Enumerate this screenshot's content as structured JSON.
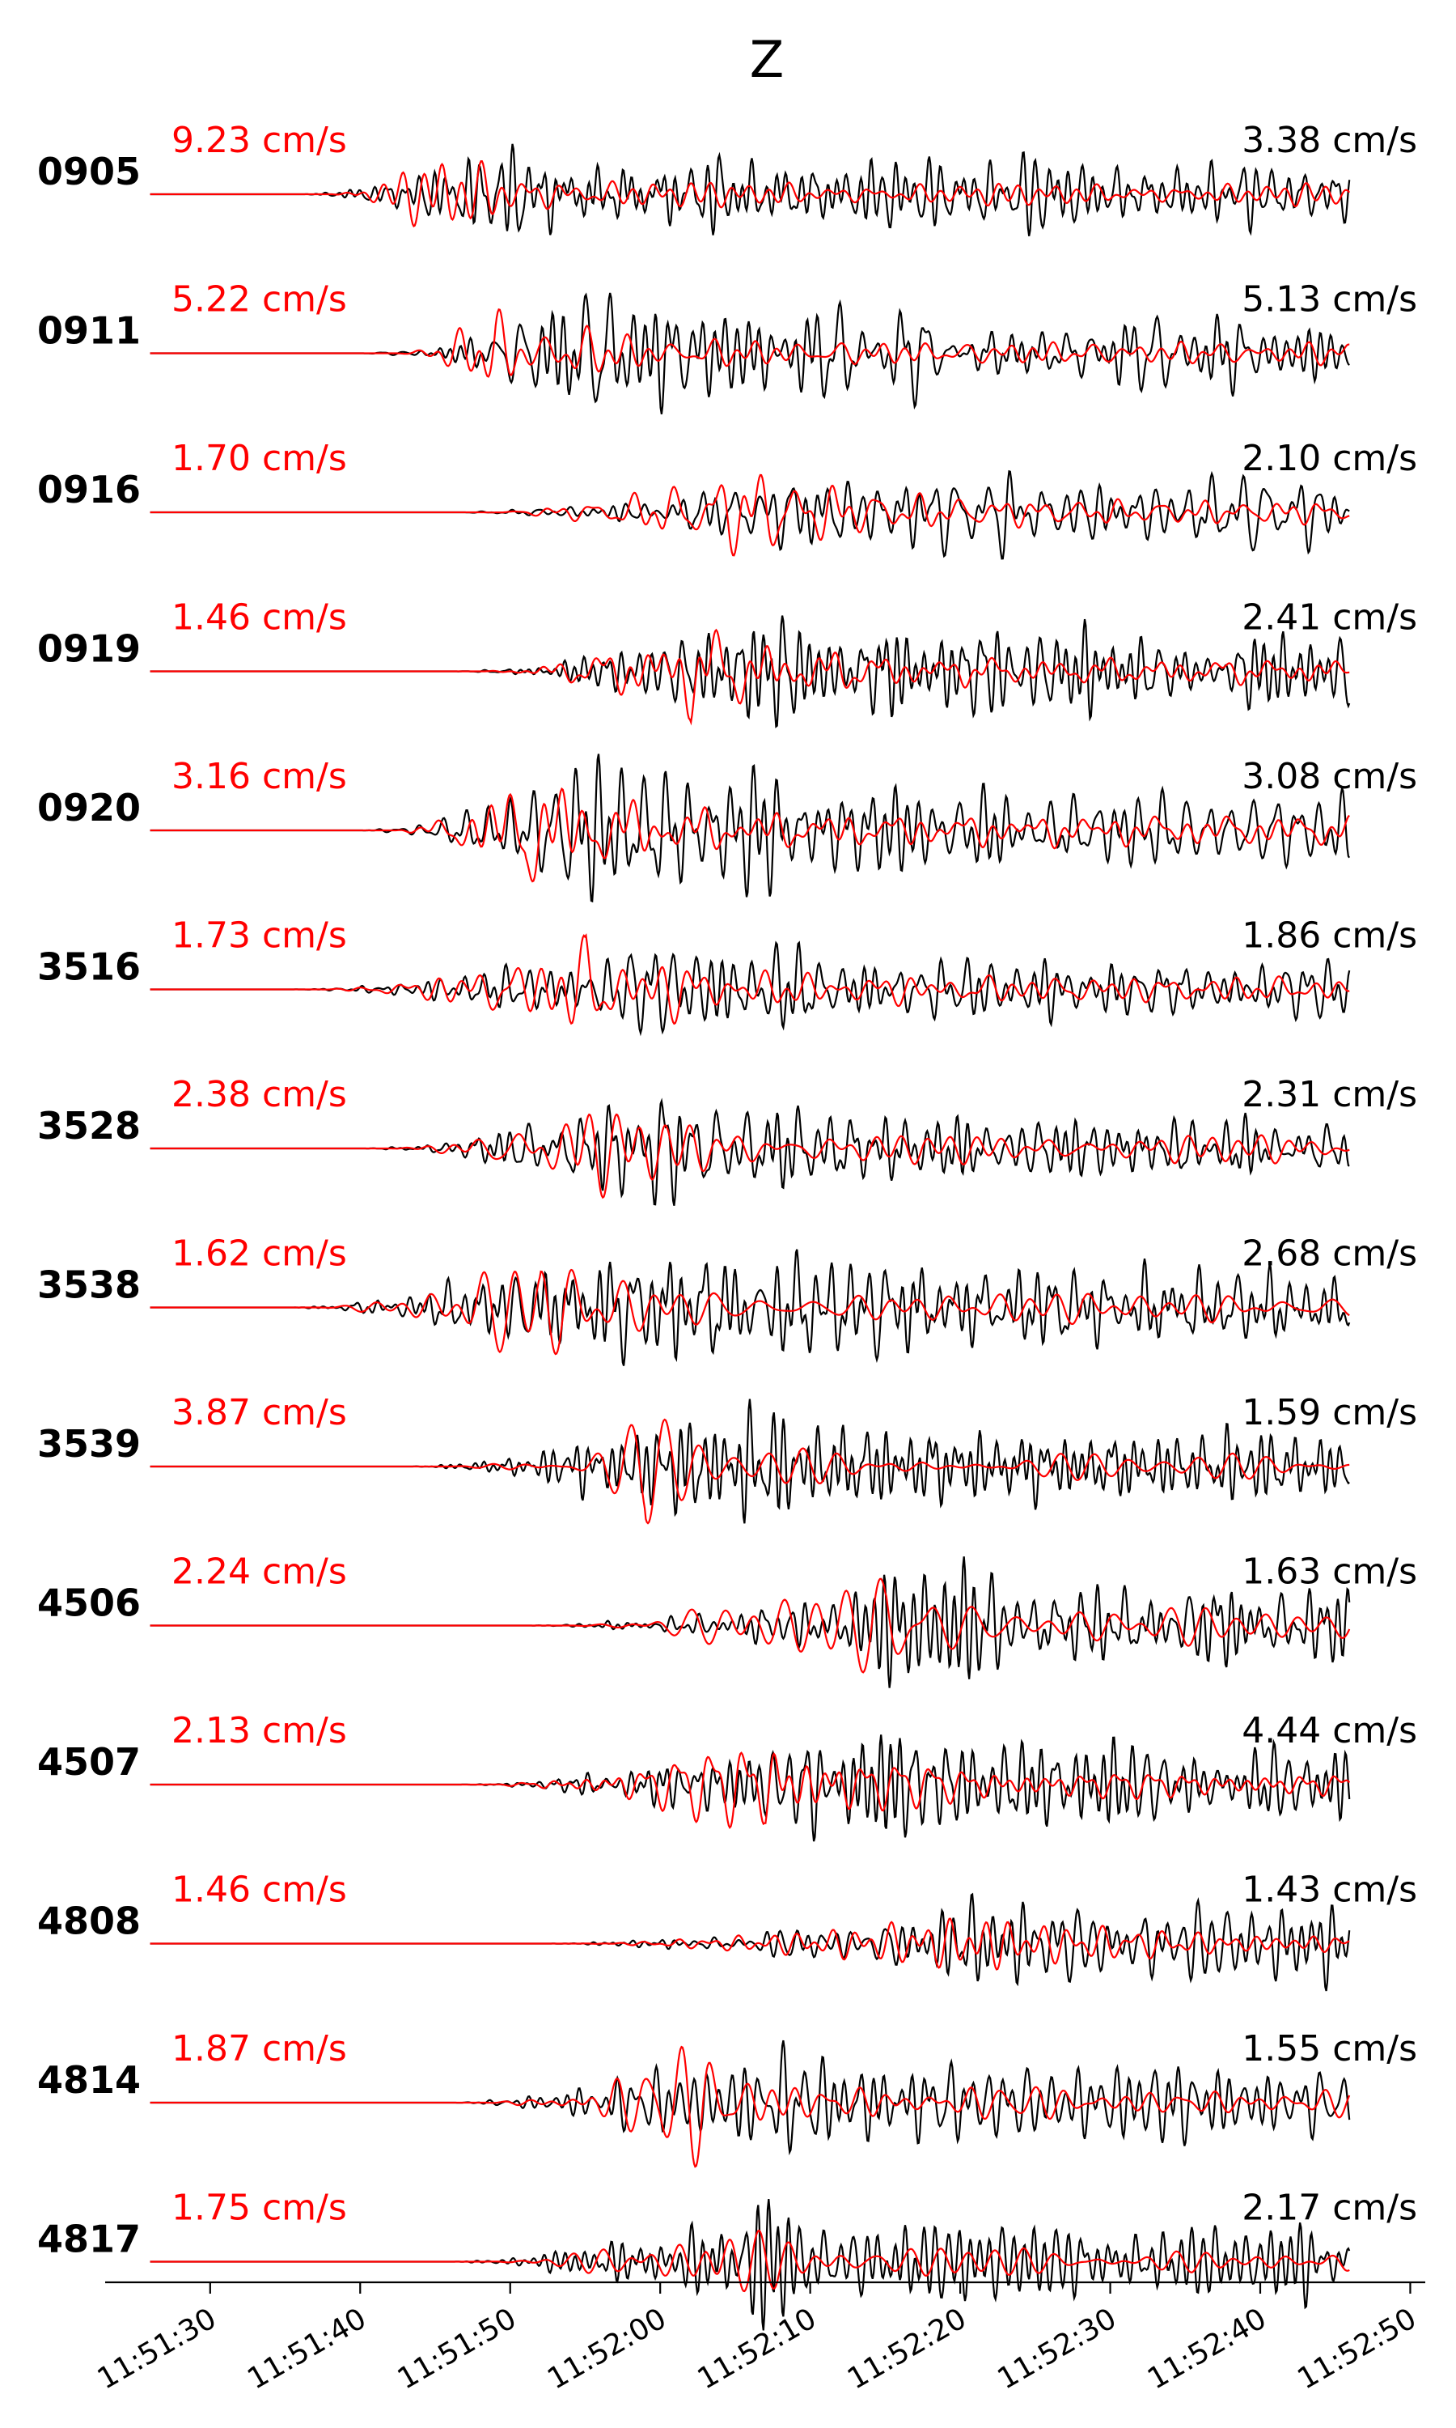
{
  "chart_data": {
    "type": "line",
    "title": "Z",
    "xlabel": "",
    "ylabel": "",
    "xlim": [
      "11:51:23",
      "11:52:51"
    ],
    "x_ticks": [
      "11:51:30",
      "11:51:40",
      "11:51:50",
      "11:52:00",
      "11:52:10",
      "11:52:20",
      "11:52:30",
      "11:52:40",
      "11:52:50"
    ],
    "grid": false,
    "legend": "none",
    "trace_start": "11:51:26",
    "trace_end": "11:52:46",
    "series_colors": {
      "red": "#ff0000",
      "black": "#000000"
    },
    "traces": [
      {
        "station": "0905",
        "red_peak": "9.23 cm/s",
        "black_peak": "3.38 cm/s",
        "onset": "11:51:36",
        "peak_time": "11:51:45"
      },
      {
        "station": "0911",
        "red_peak": "5.22 cm/s",
        "black_peak": "5.13 cm/s",
        "onset": "11:51:40",
        "peak_time": "11:51:49"
      },
      {
        "station": "0916",
        "red_peak": "1.70 cm/s",
        "black_peak": "2.10 cm/s",
        "onset": "11:51:46",
        "peak_time": "11:52:06"
      },
      {
        "station": "0919",
        "red_peak": "1.46 cm/s",
        "black_peak": "2.41 cm/s",
        "onset": "11:51:46",
        "peak_time": "11:52:02"
      },
      {
        "station": "0920",
        "red_peak": "3.16 cm/s",
        "black_peak": "3.08 cm/s",
        "onset": "11:51:40",
        "peak_time": "11:51:51"
      },
      {
        "station": "3516",
        "red_peak": "1.73 cm/s",
        "black_peak": "1.86 cm/s",
        "onset": "11:51:35",
        "peak_time": "11:51:55"
      },
      {
        "station": "3528",
        "red_peak": "2.38 cm/s",
        "black_peak": "2.31 cm/s",
        "onset": "11:51:40",
        "peak_time": "11:51:54"
      },
      {
        "station": "3538",
        "red_peak": "1.62 cm/s",
        "black_peak": "2.68 cm/s",
        "onset": "11:51:35",
        "peak_time": "11:51:52"
      },
      {
        "station": "3539",
        "red_peak": "3.87 cm/s",
        "black_peak": "1.59 cm/s",
        "onset": "11:51:43",
        "peak_time": "11:51:59"
      },
      {
        "station": "4506",
        "red_peak": "2.24 cm/s",
        "black_peak": "1.63 cm/s",
        "onset": "11:51:51",
        "peak_time": "11:52:15"
      },
      {
        "station": "4507",
        "red_peak": "2.13 cm/s",
        "black_peak": "4.44 cm/s",
        "onset": "11:51:46",
        "peak_time": "11:52:07"
      },
      {
        "station": "4808",
        "red_peak": "1.46 cm/s",
        "black_peak": "1.43 cm/s",
        "onset": "11:51:52",
        "peak_time": "11:52:21"
      },
      {
        "station": "4814",
        "red_peak": "1.87 cm/s",
        "black_peak": "1.55 cm/s",
        "onset": "11:51:46",
        "peak_time": "11:52:02"
      },
      {
        "station": "4817",
        "red_peak": "1.75 cm/s",
        "black_peak": "2.17 cm/s",
        "onset": "11:51:46",
        "peak_time": "11:52:03"
      }
    ]
  }
}
